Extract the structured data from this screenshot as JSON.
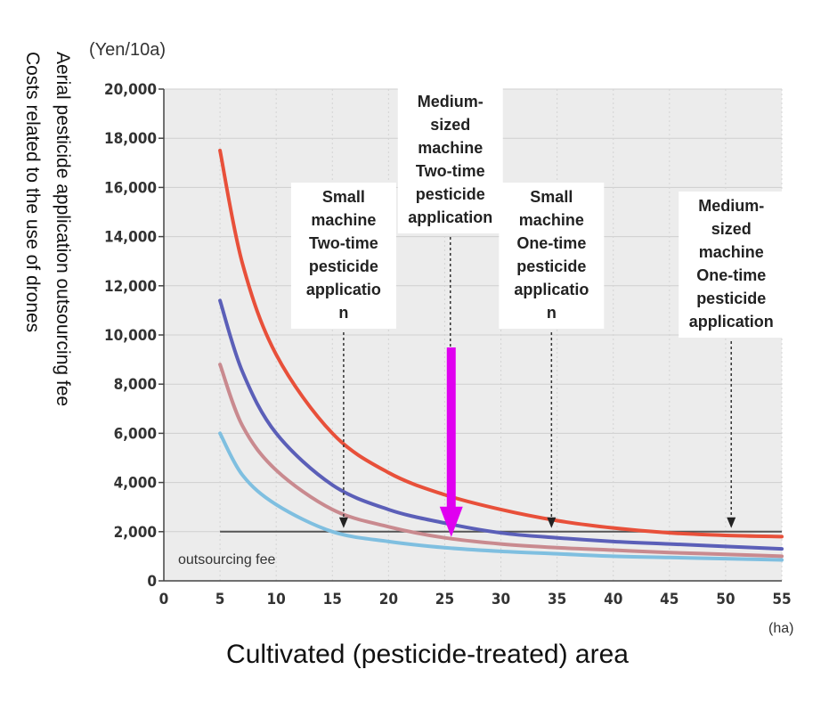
{
  "chart_data": {
    "type": "line",
    "y_unit_label": "(Yen/10a)",
    "x_unit_label": "(ha)",
    "xlabel": "Cultivated (pesticide-treated) area",
    "ylabel_lines": [
      "Aerial pesticide application outsourcing fee",
      "Costs related to the use of drones"
    ],
    "xlim": [
      0,
      55
    ],
    "ylim": [
      0,
      20000
    ],
    "x_ticks": [
      "0",
      "5",
      "10",
      "15",
      "20",
      "25",
      "30",
      "35",
      "40",
      "45",
      "50",
      "55"
    ],
    "y_ticks": [
      "0",
      "2,000",
      "4,000",
      "6,000",
      "8,000",
      "10,000",
      "12,000",
      "14,000",
      "16,000",
      "18,000",
      "20,000"
    ],
    "grid": true,
    "outsourcing_fee": {
      "label": "outsourcing fee",
      "value": 2000
    },
    "series": [
      {
        "color": "#e8503a",
        "x": [
          5,
          7,
          10,
          15,
          20,
          25,
          30,
          35,
          40,
          45,
          50,
          55
        ],
        "values": [
          17500,
          12900,
          9200,
          6000,
          4400,
          3500,
          2900,
          2450,
          2150,
          1950,
          1850,
          1800
        ]
      },
      {
        "color": "#5b5fb8",
        "x": [
          5,
          7,
          10,
          15,
          20,
          25,
          30,
          35,
          40,
          45,
          50,
          55
        ],
        "values": [
          11400,
          8500,
          6000,
          3900,
          2900,
          2350,
          1950,
          1750,
          1600,
          1500,
          1400,
          1300
        ]
      },
      {
        "color": "#c98a8f",
        "x": [
          5,
          7,
          10,
          15,
          20,
          25,
          30,
          35,
          40,
          45,
          50,
          55
        ],
        "values": [
          8800,
          6300,
          4500,
          2900,
          2200,
          1750,
          1500,
          1350,
          1250,
          1150,
          1080,
          1000
        ]
      },
      {
        "color": "#7fbfe0",
        "x": [
          5,
          7,
          10,
          15,
          20,
          25,
          30,
          35,
          40,
          45,
          50,
          55
        ],
        "values": [
          6000,
          4300,
          3100,
          2000,
          1600,
          1350,
          1200,
          1100,
          1000,
          950,
          900,
          850
        ]
      }
    ],
    "annotations": [
      {
        "lines": [
          "Small",
          "machine",
          "Two-time",
          "pesticide",
          "applicatio",
          "n"
        ],
        "x": 16,
        "y": 2000
      },
      {
        "lines": [
          "Medium-",
          "sized",
          "machine",
          "Two-time",
          "pesticide",
          "application"
        ],
        "x": 25.5,
        "y": 2000,
        "highlight": true
      },
      {
        "lines": [
          "Small",
          "machine",
          "One-time",
          "pesticide",
          "applicatio",
          "n"
        ],
        "x": 34.5,
        "y": 2000
      },
      {
        "lines": [
          "Medium-",
          "sized",
          "machine",
          "One-time",
          "pesticide",
          "application"
        ],
        "x": 50.5,
        "y": 2000
      }
    ],
    "highlight_arrow_color": "#e000f0"
  }
}
